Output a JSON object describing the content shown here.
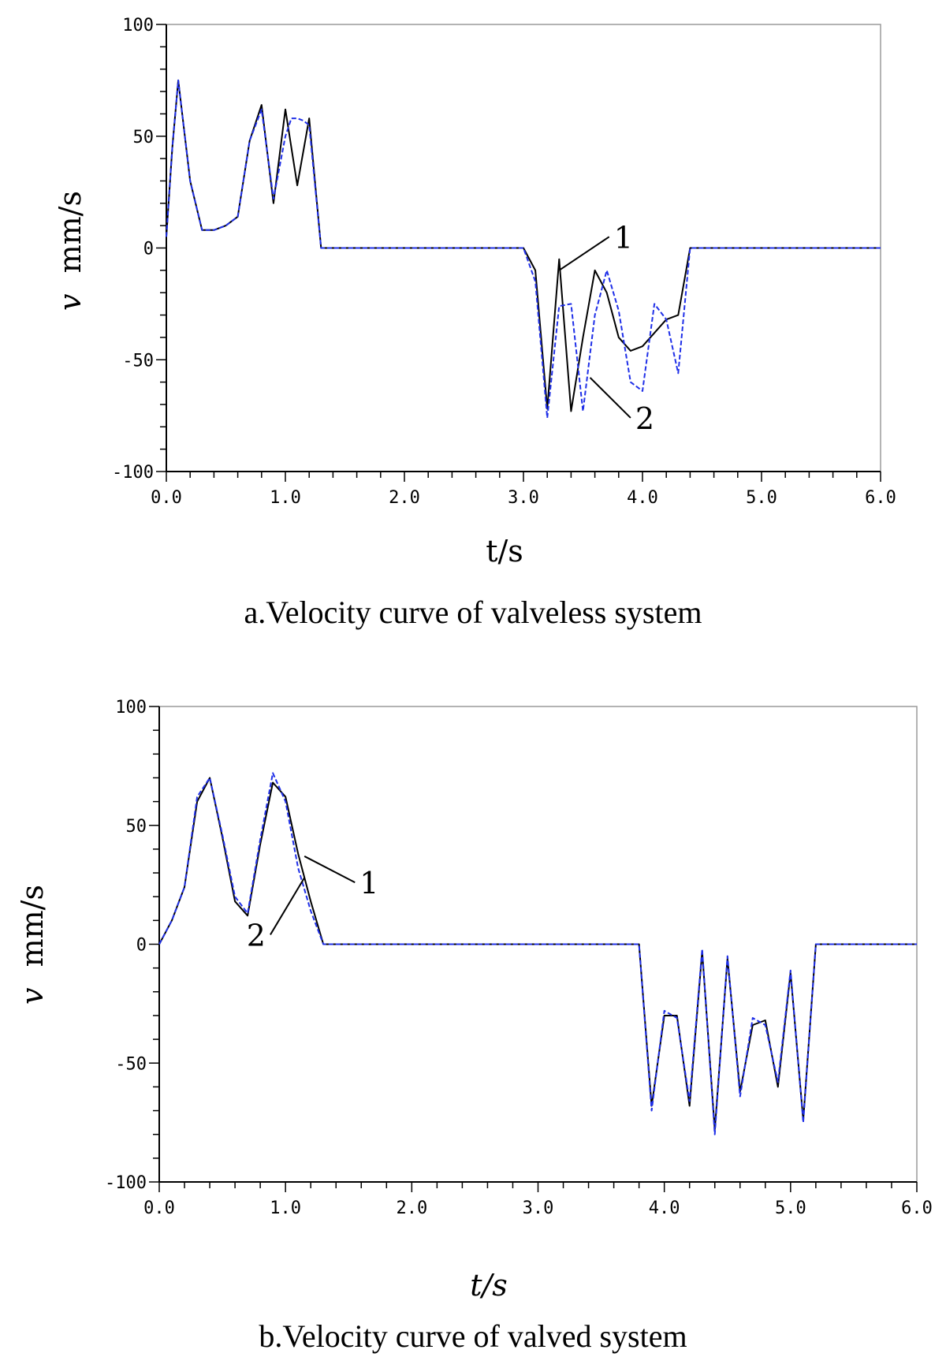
{
  "chart_data": [
    {
      "type": "line",
      "caption": "a.Velocity curve of valveless system",
      "xlabel": "t/s",
      "ylabel_var": "v",
      "ylabel_unit": "mm/s",
      "xlim": [
        0,
        6
      ],
      "ylim": [
        -100,
        100
      ],
      "xticks": [
        0,
        1,
        2,
        3,
        4,
        5,
        6
      ],
      "xtick_labels": [
        "0.0",
        "1.0",
        "2.0",
        "3.0",
        "4.0",
        "5.0",
        "6.0"
      ],
      "yticks": [
        100,
        50,
        0,
        -50,
        -100
      ],
      "ytick_labels": [
        "100",
        "50",
        "0",
        "-50",
        "-100"
      ],
      "grid": false,
      "series": [
        {
          "name": "1",
          "color": "#000000",
          "dashed": false,
          "x": [
            0,
            0.05,
            0.1,
            0.2,
            0.3,
            0.4,
            0.5,
            0.6,
            0.7,
            0.8,
            0.9,
            1.0,
            1.1,
            1.2,
            1.3,
            2.0,
            3.0,
            3.1,
            3.2,
            3.3,
            3.4,
            3.5,
            3.6,
            3.7,
            3.8,
            3.9,
            4.0,
            4.1,
            4.2,
            4.3,
            4.4,
            5.0,
            6.0
          ],
          "y": [
            5,
            45,
            75,
            30,
            8,
            8,
            10,
            14,
            48,
            64,
            20,
            62,
            28,
            58,
            0,
            0,
            0,
            -10,
            -72,
            -5,
            -73,
            -40,
            -10,
            -20,
            -40,
            -46,
            -44,
            -38,
            -32,
            -30,
            0,
            0,
            0
          ]
        },
        {
          "name": "2",
          "color": "#1f2fe8",
          "dashed": true,
          "x": [
            0,
            0.05,
            0.1,
            0.2,
            0.3,
            0.4,
            0.5,
            0.6,
            0.7,
            0.8,
            0.9,
            1.0,
            1.05,
            1.1,
            1.15,
            1.2,
            1.3,
            2.0,
            3.0,
            3.1,
            3.2,
            3.3,
            3.4,
            3.5,
            3.6,
            3.7,
            3.8,
            3.9,
            4.0,
            4.1,
            4.2,
            4.3,
            4.4,
            5.0,
            6.0
          ],
          "y": [
            5,
            45,
            75,
            30,
            8,
            8,
            10,
            14,
            48,
            62,
            22,
            50,
            58,
            58,
            57,
            55,
            0,
            0,
            0,
            -15,
            -76,
            -26,
            -25,
            -73,
            -30,
            -10,
            -28,
            -60,
            -64,
            -25,
            -32,
            -56,
            0,
            0,
            0
          ]
        }
      ],
      "annotations": [
        {
          "text": "1",
          "series": "1",
          "target": [
            3.3,
            -10
          ],
          "label_at": [
            3.72,
            5
          ]
        },
        {
          "text": "2",
          "series": "2",
          "target": [
            3.56,
            -58
          ],
          "label_at": [
            3.9,
            -76
          ]
        }
      ]
    },
    {
      "type": "line",
      "caption": "b.Velocity curve of valved system",
      "xlabel": "t/s",
      "ylabel_var": "v",
      "ylabel_unit": "mm/s",
      "xlim": [
        0,
        6
      ],
      "ylim": [
        -100,
        100
      ],
      "xticks": [
        0,
        1,
        2,
        3,
        4,
        5,
        6
      ],
      "xtick_labels": [
        "0.0",
        "1.0",
        "2.0",
        "3.0",
        "4.0",
        "5.0",
        "6.0"
      ],
      "yticks": [
        100,
        50,
        0,
        -50,
        -100
      ],
      "ytick_labels": [
        "100",
        "50",
        "0",
        "-50",
        "-100"
      ],
      "grid": false,
      "series": [
        {
          "name": "1",
          "color": "#000000",
          "dashed": false,
          "x": [
            0,
            0.1,
            0.2,
            0.3,
            0.4,
            0.5,
            0.6,
            0.7,
            0.8,
            0.9,
            1.0,
            1.1,
            1.2,
            1.3,
            2.0,
            3.0,
            3.8,
            3.9,
            4.0,
            4.1,
            4.2,
            4.3,
            4.4,
            4.5,
            4.6,
            4.7,
            4.8,
            4.9,
            5.0,
            5.1,
            5.2,
            6.0
          ],
          "y": [
            0,
            10,
            24,
            60,
            70,
            45,
            18,
            12,
            42,
            68,
            62,
            38,
            18,
            0,
            0,
            0,
            0,
            -68,
            -30,
            -30,
            -68,
            -3,
            -78,
            -6,
            -62,
            -34,
            -32,
            -60,
            -12,
            -74,
            0,
            0
          ]
        },
        {
          "name": "2",
          "color": "#1f2fe8",
          "dashed": true,
          "x": [
            0,
            0.1,
            0.2,
            0.3,
            0.4,
            0.5,
            0.6,
            0.7,
            0.8,
            0.9,
            1.0,
            1.1,
            1.2,
            1.3,
            2.0,
            3.0,
            3.8,
            3.9,
            4.0,
            4.1,
            4.2,
            4.3,
            4.4,
            4.5,
            4.6,
            4.7,
            4.8,
            4.9,
            5.0,
            5.1,
            5.2,
            6.0
          ],
          "y": [
            0,
            10,
            24,
            62,
            70,
            46,
            20,
            13,
            44,
            72,
            60,
            32,
            14,
            0,
            0,
            0,
            0,
            -70,
            -28,
            -31,
            -66,
            -2,
            -80,
            -5,
            -64,
            -31,
            -34,
            -58,
            -11,
            -75,
            0,
            0
          ]
        }
      ],
      "annotations": [
        {
          "text": "1",
          "series": "1",
          "target": [
            1.15,
            37
          ],
          "label_at": [
            1.55,
            26
          ]
        },
        {
          "text": "2",
          "series": "2",
          "target": [
            1.15,
            28
          ],
          "label_at": [
            0.88,
            4
          ]
        }
      ]
    }
  ]
}
